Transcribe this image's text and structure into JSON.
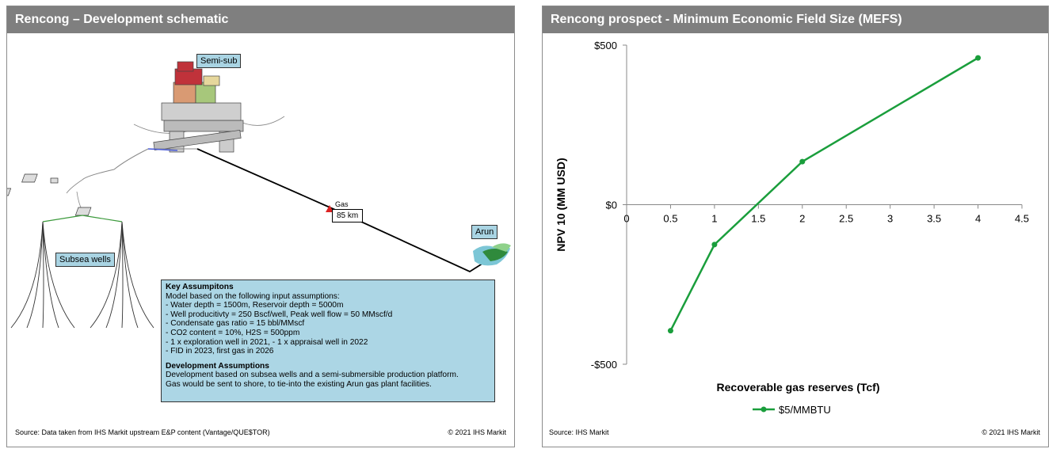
{
  "left": {
    "title": "Rencong – Development schematic",
    "labels": {
      "semisub": "Semi-sub",
      "subsea_wells": "Subsea wells",
      "arun": "Arun",
      "gas": "Gas",
      "distance": "85 km"
    },
    "key_assumptions": {
      "heading": "Key Assumpitons",
      "lines": [
        "Model based on the following input assumptions:",
        "- Water depth = 1500m, Reservoir depth = 5000m",
        "- Well producitivty = 250 Bscf/well, Peak well flow = 50 MMscf/d",
        "- Condensate gas ratio = 15 bbl/MMscf",
        "- CO2 content = 10%, H2S = 500ppm",
        "- 1 x exploration well in 2021, - 1 x appraisal well in 2022",
        "- FID in 2023, first gas in 2026"
      ],
      "dev_heading": "Development Assumptions",
      "dev_lines": [
        "Development based on subsea wells and a semi-submersible production platform.",
        "Gas would be sent to shore, to tie-into the existing Arun gas plant facilities."
      ]
    },
    "source": "Source: Data taken from IHS Markit upstream E&P content (Vantage/QUE$TOR)",
    "copyright": "© 2021 IHS Markit"
  },
  "right": {
    "title": "Rencong prospect - Minimum Economic Field Size (MEFS)",
    "source": "Source: IHS Markit",
    "copyright": "© 2021 IHS Markit"
  },
  "colors": {
    "header": "#7f7f7f",
    "line": "#1a9e3c",
    "callout": "#acd6e5"
  },
  "chart_data": {
    "type": "line",
    "title": "",
    "xlabel": "Recoverable gas reserves (Tcf)",
    "ylabel": "NPV 10 (MM USD)",
    "xlim": [
      0,
      4.5
    ],
    "ylim": [
      -500,
      500
    ],
    "x_ticks": [
      "0",
      "0.5",
      "1",
      "1.5",
      "2",
      "2.5",
      "3",
      "3.5",
      "4",
      "4.5"
    ],
    "y_ticks": [
      "$500",
      "$0",
      "-$500"
    ],
    "legend_position": "bottom",
    "series": [
      {
        "name": "$5/MMBTU",
        "x": [
          0.5,
          1,
          2,
          4
        ],
        "y": [
          -395,
          -125,
          135,
          460
        ]
      }
    ]
  }
}
